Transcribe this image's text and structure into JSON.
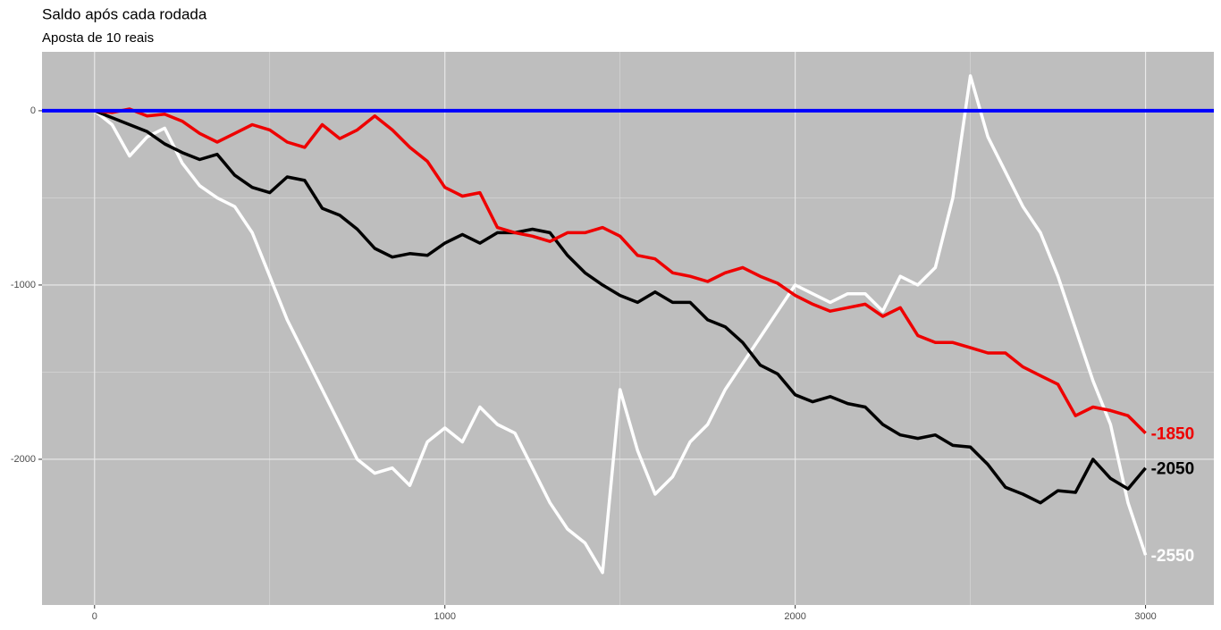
{
  "chart_data": {
    "type": "line",
    "title": "Saldo após cada rodada",
    "subtitle": "Aposta de 10 reais",
    "x": [
      0,
      50,
      100,
      150,
      200,
      250,
      300,
      350,
      400,
      450,
      500,
      550,
      600,
      650,
      700,
      750,
      800,
      850,
      900,
      950,
      1000,
      1050,
      1100,
      1150,
      1200,
      1250,
      1300,
      1350,
      1400,
      1450,
      1500,
      1550,
      1600,
      1650,
      1700,
      1750,
      1800,
      1850,
      1900,
      1950,
      2000,
      2050,
      2100,
      2150,
      2200,
      2250,
      2300,
      2350,
      2400,
      2450,
      2500,
      2550,
      2600,
      2650,
      2700,
      2750,
      2800,
      2850,
      2900,
      2950,
      3000
    ],
    "series": [
      {
        "color": "#ffffff",
        "values": [
          0,
          -80,
          -260,
          -150,
          -100,
          -300,
          -430,
          -500,
          -550,
          -700,
          -950,
          -1200,
          -1400,
          -1600,
          -1800,
          -2000,
          -2080,
          -2050,
          -2150,
          -1900,
          -1820,
          -1900,
          -1700,
          -1800,
          -1850,
          -2050,
          -2250,
          -2400,
          -2480,
          -2650,
          -1600,
          -1950,
          -2200,
          -2100,
          -1900,
          -1800,
          -1600,
          -1450,
          -1300,
          -1150,
          -1000,
          -1050,
          -1100,
          -1050,
          -1050,
          -1150,
          -950,
          -1000,
          -900,
          -500,
          200,
          -150,
          -350,
          -550,
          -700,
          -950,
          -1250,
          -1550,
          -1800,
          -2250,
          -2550
        ]
      },
      {
        "color": "#000000",
        "values": [
          0,
          -40,
          -80,
          -120,
          -190,
          -240,
          -280,
          -250,
          -370,
          -440,
          -470,
          -380,
          -400,
          -560,
          -600,
          -680,
          -790,
          -840,
          -820,
          -830,
          -760,
          -710,
          -760,
          -700,
          -700,
          -680,
          -700,
          -830,
          -930,
          -1000,
          -1060,
          -1100,
          -1040,
          -1100,
          -1100,
          -1200,
          -1240,
          -1330,
          -1460,
          -1510,
          -1630,
          -1670,
          -1640,
          -1680,
          -1700,
          -1800,
          -1860,
          -1880,
          -1860,
          -1920,
          -1930,
          -2030,
          -2160,
          -2200,
          -2250,
          -2180,
          -2190,
          -2000,
          -2110,
          -2170,
          -2050
        ]
      },
      {
        "color": "#ee0000",
        "values": [
          0,
          -10,
          10,
          -30,
          -20,
          -60,
          -130,
          -180,
          -130,
          -80,
          -110,
          -180,
          -210,
          -80,
          -160,
          -110,
          -30,
          -110,
          -210,
          -290,
          -440,
          -490,
          -470,
          -670,
          -700,
          -720,
          -750,
          -700,
          -700,
          -670,
          -720,
          -830,
          -850,
          -930,
          -950,
          -980,
          -930,
          -900,
          -950,
          -990,
          -1060,
          -1110,
          -1150,
          -1130,
          -1110,
          -1180,
          -1130,
          -1290,
          -1330,
          -1330,
          -1360,
          -1390,
          -1390,
          -1470,
          -1520,
          -1570,
          -1750,
          -1700,
          -1720,
          -1750,
          -1850
        ]
      }
    ],
    "hline": {
      "value": 0,
      "color": "#0000ff"
    },
    "xlim": [
      -150,
      3195
    ],
    "ylim": [
      -2836,
      338
    ],
    "xticks": [
      0,
      1000,
      2000,
      3000
    ],
    "yticks": [
      -2000,
      -1000,
      0
    ],
    "grid": true,
    "background": "#bebebe"
  }
}
